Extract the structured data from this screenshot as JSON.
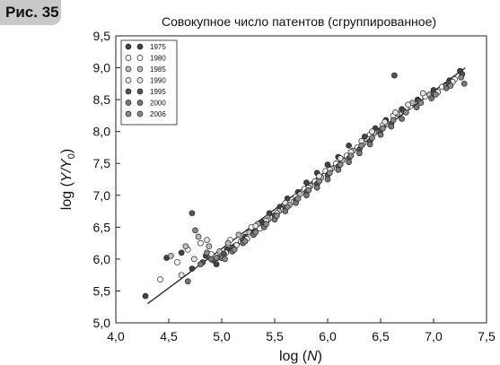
{
  "figure_label": "Рис. 35",
  "chart_data": {
    "type": "scatter",
    "title": "Совокупное число патентов (сгруппированное)",
    "xlabel_prefix": "log (",
    "xlabel_var": "N",
    "xlabel_suffix": ")",
    "ylabel_prefix": "log (",
    "ylabel_var": "Y/Y",
    "ylabel_sub": "0",
    "ylabel_suffix": ")",
    "xlim": [
      4.0,
      7.5
    ],
    "ylim": [
      5.0,
      9.5
    ],
    "xticks": [
      "4,0",
      "4,5",
      "5,0",
      "5,5",
      "6,0",
      "6,5",
      "7,0",
      "7,5"
    ],
    "yticks": [
      "5,0",
      "5,5",
      "6,0",
      "6,5",
      "7,0",
      "7,5",
      "8,0",
      "8,5",
      "9,0",
      "9,5"
    ],
    "legend_position": "top-left",
    "grid": false,
    "fit_line": {
      "x": [
        4.3,
        7.3
      ],
      "y": [
        5.3,
        9.0
      ]
    },
    "series": [
      {
        "name": "1975",
        "color": "#444444",
        "points": [
          [
            4.28,
            5.42
          ],
          [
            4.48,
            6.02
          ],
          [
            4.62,
            6.1
          ],
          [
            4.72,
            5.85
          ],
          [
            4.85,
            6.05
          ],
          [
            4.95,
            5.92
          ],
          [
            5.05,
            6.15
          ],
          [
            5.12,
            6.2
          ],
          [
            5.22,
            6.35
          ],
          [
            5.3,
            6.45
          ],
          [
            5.38,
            6.58
          ],
          [
            5.45,
            6.72
          ],
          [
            5.55,
            6.82
          ],
          [
            5.62,
            6.95
          ],
          [
            5.72,
            7.05
          ],
          [
            5.8,
            7.2
          ],
          [
            5.9,
            7.35
          ],
          [
            6.0,
            7.48
          ],
          [
            6.1,
            7.6
          ],
          [
            6.2,
            7.78
          ],
          [
            6.35,
            7.92
          ],
          [
            6.45,
            8.05
          ],
          [
            6.55,
            8.18
          ],
          [
            6.7,
            8.35
          ],
          [
            6.85,
            8.5
          ],
          [
            7.0,
            8.65
          ],
          [
            7.15,
            8.8
          ],
          [
            7.25,
            8.95
          ]
        ]
      },
      {
        "name": "1980",
        "color": "#ffffff",
        "points": [
          [
            4.42,
            5.68
          ],
          [
            4.58,
            5.95
          ],
          [
            4.68,
            6.15
          ],
          [
            4.8,
            6.25
          ],
          [
            4.9,
            6.08
          ],
          [
            5.0,
            6.05
          ],
          [
            5.08,
            6.3
          ],
          [
            5.18,
            6.28
          ],
          [
            5.28,
            6.5
          ],
          [
            5.36,
            6.48
          ],
          [
            5.48,
            6.65
          ],
          [
            5.58,
            6.78
          ],
          [
            5.68,
            6.9
          ],
          [
            5.78,
            7.1
          ],
          [
            5.88,
            7.22
          ],
          [
            5.98,
            7.38
          ],
          [
            6.08,
            7.5
          ],
          [
            6.18,
            7.62
          ],
          [
            6.28,
            7.75
          ],
          [
            6.4,
            7.95
          ],
          [
            6.52,
            8.1
          ],
          [
            6.62,
            8.25
          ],
          [
            6.78,
            8.4
          ],
          [
            6.92,
            8.55
          ],
          [
            7.08,
            8.7
          ],
          [
            7.2,
            8.82
          ]
        ]
      },
      {
        "name": "1985",
        "color": "#bbbbbb",
        "points": [
          [
            4.52,
            6.05
          ],
          [
            4.66,
            6.2
          ],
          [
            4.78,
            6.35
          ],
          [
            4.88,
            6.2
          ],
          [
            4.98,
            6.12
          ],
          [
            5.06,
            6.25
          ],
          [
            5.16,
            6.38
          ],
          [
            5.26,
            6.42
          ],
          [
            5.34,
            6.55
          ],
          [
            5.44,
            6.62
          ],
          [
            5.54,
            6.75
          ],
          [
            5.64,
            6.85
          ],
          [
            5.74,
            7.02
          ],
          [
            5.84,
            7.15
          ],
          [
            5.94,
            7.28
          ],
          [
            6.04,
            7.42
          ],
          [
            6.14,
            7.55
          ],
          [
            6.24,
            7.7
          ],
          [
            6.34,
            7.82
          ],
          [
            6.44,
            7.98
          ],
          [
            6.56,
            8.12
          ],
          [
            6.66,
            8.28
          ],
          [
            6.8,
            8.45
          ],
          [
            6.96,
            8.58
          ],
          [
            7.12,
            8.72
          ]
        ]
      },
      {
        "name": "1990",
        "color": "#e6e6e6",
        "points": [
          [
            4.62,
            5.75
          ],
          [
            4.74,
            6.0
          ],
          [
            4.86,
            6.3
          ],
          [
            4.96,
            6.02
          ],
          [
            5.04,
            6.1
          ],
          [
            5.14,
            6.22
          ],
          [
            5.24,
            6.32
          ],
          [
            5.32,
            6.52
          ],
          [
            5.42,
            6.6
          ],
          [
            5.52,
            6.72
          ],
          [
            5.6,
            6.88
          ],
          [
            5.7,
            6.98
          ],
          [
            5.82,
            7.12
          ],
          [
            5.92,
            7.3
          ],
          [
            6.02,
            7.4
          ],
          [
            6.12,
            7.58
          ],
          [
            6.22,
            7.68
          ],
          [
            6.32,
            7.85
          ],
          [
            6.42,
            8.0
          ],
          [
            6.54,
            8.15
          ],
          [
            6.64,
            8.3
          ],
          [
            6.76,
            8.42
          ],
          [
            6.9,
            8.6
          ],
          [
            7.04,
            8.62
          ],
          [
            7.18,
            8.78
          ]
        ]
      },
      {
        "name": "1995",
        "color": "#555555",
        "points": [
          [
            4.72,
            6.72
          ],
          [
            4.82,
            5.95
          ],
          [
            4.92,
            5.98
          ],
          [
            5.02,
            6.08
          ],
          [
            5.1,
            6.18
          ],
          [
            5.2,
            6.3
          ],
          [
            5.3,
            6.4
          ],
          [
            5.4,
            6.55
          ],
          [
            5.5,
            6.68
          ],
          [
            5.6,
            6.8
          ],
          [
            5.7,
            6.92
          ],
          [
            5.8,
            7.05
          ],
          [
            5.9,
            7.18
          ],
          [
            6.0,
            7.32
          ],
          [
            6.1,
            7.45
          ],
          [
            6.2,
            7.58
          ],
          [
            6.3,
            7.72
          ],
          [
            6.4,
            7.85
          ],
          [
            6.5,
            8.02
          ],
          [
            6.6,
            8.12
          ],
          [
            6.63,
            8.88
          ],
          [
            6.72,
            8.32
          ],
          [
            6.86,
            8.48
          ],
          [
            7.0,
            8.6
          ],
          [
            7.14,
            8.76
          ],
          [
            7.27,
            8.9
          ]
        ]
      },
      {
        "name": "2000",
        "color": "#777777",
        "points": [
          [
            4.68,
            5.65
          ],
          [
            4.8,
            5.92
          ],
          [
            4.9,
            6.0
          ],
          [
            5.0,
            6.02
          ],
          [
            5.1,
            6.12
          ],
          [
            5.2,
            6.25
          ],
          [
            5.3,
            6.38
          ],
          [
            5.4,
            6.5
          ],
          [
            5.5,
            6.62
          ],
          [
            5.6,
            6.75
          ],
          [
            5.7,
            6.88
          ],
          [
            5.8,
            7.0
          ],
          [
            5.9,
            7.12
          ],
          [
            6.0,
            7.25
          ],
          [
            6.1,
            7.4
          ],
          [
            6.2,
            7.52
          ],
          [
            6.3,
            7.66
          ],
          [
            6.4,
            7.8
          ],
          [
            6.5,
            7.95
          ],
          [
            6.6,
            8.08
          ],
          [
            6.7,
            8.2
          ],
          [
            6.84,
            8.38
          ],
          [
            6.98,
            8.52
          ],
          [
            7.12,
            8.68
          ],
          [
            7.29,
            8.75
          ]
        ]
      },
      {
        "name": "2006",
        "color": "#8a8a8a",
        "points": [
          [
            4.75,
            6.45
          ],
          [
            4.86,
            6.1
          ],
          [
            4.95,
            6.02
          ],
          [
            5.03,
            6.0
          ],
          [
            5.12,
            6.15
          ],
          [
            5.22,
            6.28
          ],
          [
            5.32,
            6.42
          ],
          [
            5.42,
            6.55
          ],
          [
            5.52,
            6.68
          ],
          [
            5.62,
            6.82
          ],
          [
            5.72,
            6.95
          ],
          [
            5.82,
            7.08
          ],
          [
            5.92,
            7.22
          ],
          [
            6.02,
            7.35
          ],
          [
            6.12,
            7.48
          ],
          [
            6.22,
            7.62
          ],
          [
            6.32,
            7.78
          ],
          [
            6.42,
            7.9
          ],
          [
            6.52,
            8.05
          ],
          [
            6.62,
            8.18
          ],
          [
            6.74,
            8.3
          ],
          [
            6.88,
            8.45
          ],
          [
            7.02,
            8.58
          ],
          [
            7.16,
            8.72
          ],
          [
            7.26,
            8.85
          ]
        ]
      }
    ]
  }
}
